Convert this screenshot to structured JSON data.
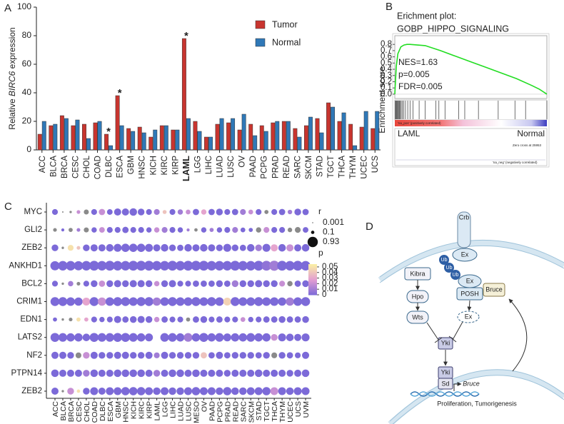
{
  "panel_labels": [
    "A",
    "B",
    "C",
    "D"
  ],
  "chart_data": [
    {
      "type": "bar",
      "categories": [
        "ACC",
        "BLCA",
        "BRCA",
        "CESC",
        "CHOL",
        "COAD",
        "DLBC",
        "ESCA",
        "GBM",
        "HNSC",
        "KICH",
        "KIRC",
        "KIRP",
        "LAML",
        "LGG",
        "LIHC",
        "LUAD",
        "LUSC",
        "OV",
        "PAAD",
        "PCPG",
        "PRAD",
        "READ",
        "SARC",
        "SKCM",
        "STAD",
        "TGCT",
        "THCA",
        "THYM",
        "UCEC",
        "UCS"
      ],
      "series": [
        {
          "name": "Tumor",
          "color": "#c8352f",
          "values": [
            11,
            17,
            24,
            17,
            18,
            19,
            11,
            38,
            15,
            16,
            9,
            17,
            14,
            78,
            20,
            9,
            18,
            19,
            14,
            18,
            17,
            19,
            20,
            15,
            17,
            22,
            33,
            20,
            18,
            16,
            15
          ]
        },
        {
          "name": "Normal",
          "color": "#2f78b7",
          "values": [
            20,
            18,
            22,
            21,
            8,
            20,
            3,
            17,
            13,
            12,
            14,
            17,
            14,
            22,
            13,
            9,
            22,
            22,
            25,
            10,
            13,
            20,
            20,
            9,
            23,
            12,
            30,
            26,
            3,
            27,
            27
          ]
        }
      ],
      "ylim": [
        0,
        100
      ],
      "yticks": [
        0,
        20,
        40,
        60,
        80,
        100
      ],
      "ylabel": [
        "Relative ",
        "BIRC6",
        " expression"
      ],
      "annotations": [
        {
          "category": "DLBC",
          "text": "*"
        },
        {
          "category": "ESCA",
          "text": "*"
        },
        {
          "category": "LAML",
          "text": "*"
        }
      ],
      "highlight": {
        "category": "LAML",
        "color": "#e3141b"
      }
    },
    {
      "type": "gsea",
      "title": [
        "Erichment plot:",
        "GOBP_HIPPO_SIGNALING"
      ],
      "ylabel": "Enrichment score",
      "x": [
        0,
        0.01,
        0.02,
        0.04,
        0.06,
        0.08,
        0.1,
        0.15,
        0.2,
        0.3,
        0.4,
        0.5,
        0.6,
        0.7,
        0.8,
        0.9,
        0.95,
        1.0
      ],
      "values": [
        0,
        0.45,
        0.65,
        0.76,
        0.79,
        0.8,
        0.8,
        0.79,
        0.78,
        0.7,
        0.61,
        0.52,
        0.43,
        0.34,
        0.25,
        0.14,
        0.08,
        0.0
      ],
      "color": "#22dd22",
      "xlim": [
        0,
        1
      ],
      "ylim": [
        -0.07,
        0.94
      ],
      "yticks": [
        {
          "value": 0,
          "label": "0.0"
        },
        0.1,
        0.2,
        0.3,
        0.4,
        0.5,
        0.6,
        0.7,
        0.8
      ],
      "hits": [
        0.004,
        0.008,
        0.012,
        0.016,
        0.02,
        0.025,
        0.03,
        0.035,
        0.042,
        0.05,
        0.058,
        0.07,
        0.085,
        0.1,
        0.12,
        0.16,
        0.2,
        0.27,
        0.29,
        0.33,
        0.42,
        0.46,
        0.55,
        0.68,
        0.79,
        0.86,
        1.0
      ],
      "stats": [
        "NES=1.63",
        "p=0.005",
        "FDR=0.005"
      ],
      "group_labels": [
        "LAML",
        "Normal"
      ],
      "zero_cross": "Zero cross at 25953",
      "pos_label": "'na_pos' (positively correlated)",
      "neg_label": "'na_neg' (negatively correlated)"
    },
    {
      "type": "dot",
      "rows": [
        "MYC",
        "GLI2",
        "ZEB2",
        "ANKHD1",
        "BCL2",
        "CRIM1",
        "EDN1",
        "LATS2",
        "NF2",
        "PTPN14",
        "ZEB2"
      ],
      "columns": [
        "ACC",
        "BLCA",
        "BRCA",
        "CESC",
        "CHOL",
        "COAD",
        "DLBC",
        "ESCA",
        "GBM",
        "HNSC",
        "KICH",
        "KIRC",
        "KIRP",
        "LAML",
        "LGG",
        "LIHC",
        "LUAD",
        "LUSC",
        "MESO",
        "OV",
        "PAAD",
        "PCPG",
        "PRAD",
        "READ",
        "SARC",
        "SKCM",
        "STAD",
        "TGCT",
        "THCA",
        "THYM",
        "UCEC",
        "UCS",
        "UVM"
      ],
      "r": [
        [
          0.3,
          0.02,
          0.05,
          0.12,
          0.22,
          0.3,
          0.35,
          0.28,
          0.45,
          0.45,
          0.5,
          0.4,
          0.3,
          0.3,
          0.14,
          0.3,
          0.25,
          0.2,
          0.35,
          0.25,
          0.35,
          0.4,
          0.3,
          0.35,
          0.3,
          0.2,
          0.3,
          0.15,
          0.3,
          0.35,
          0.18,
          0.4,
          0.35
        ],
        [
          0.12,
          0.08,
          0.15,
          0.12,
          0.22,
          0.25,
          0.28,
          0.3,
          0.3,
          0.35,
          0.3,
          0.3,
          0.25,
          0.25,
          0.3,
          0.3,
          0.25,
          0.08,
          0.1,
          0.25,
          0.15,
          0.25,
          0.3,
          0.3,
          0.2,
          0.15,
          0.25,
          0.3,
          0.3,
          0.3,
          0.18,
          0.3,
          0.28
        ],
        [
          0.4,
          0.05,
          0.3,
          0.12,
          0.4,
          0.45,
          0.45,
          0.5,
          0.55,
          0.6,
          0.6,
          0.6,
          0.55,
          0.45,
          0.5,
          0.4,
          0.35,
          0.5,
          0.45,
          0.5,
          0.45,
          0.4,
          0.55,
          0.4,
          0.35,
          0.5,
          0.4,
          0.55,
          0.45,
          0.5,
          0.45,
          0.45,
          0.5
        ],
        [
          0.75,
          0.8,
          0.8,
          0.75,
          0.8,
          0.85,
          0.8,
          0.85,
          0.8,
          0.8,
          0.85,
          0.85,
          0.85,
          0.8,
          0.8,
          0.85,
          0.8,
          0.85,
          0.85,
          0.85,
          0.8,
          0.8,
          0.8,
          0.85,
          0.8,
          0.8,
          0.85,
          0.85,
          0.9,
          0.85,
          0.8,
          0.85,
          0.8
        ],
        [
          0.3,
          0.05,
          0.25,
          0.12,
          0.3,
          0.4,
          0.35,
          0.4,
          0.45,
          0.4,
          0.45,
          0.45,
          0.4,
          0.25,
          0.4,
          0.45,
          0.3,
          0.3,
          0.35,
          0.35,
          0.35,
          0.4,
          0.35,
          0.4,
          0.4,
          0.4,
          0.45,
          0.4,
          0.4,
          0.3,
          0.25,
          0.35,
          0.4
        ],
        [
          0.7,
          0.7,
          0.65,
          0.6,
          0.55,
          0.7,
          0.6,
          0.65,
          0.7,
          0.7,
          0.65,
          0.7,
          0.7,
          0.6,
          0.65,
          0.7,
          0.65,
          0.65,
          0.7,
          0.65,
          0.7,
          0.65,
          0.55,
          0.7,
          0.65,
          0.65,
          0.7,
          0.65,
          0.65,
          0.6,
          0.6,
          0.65,
          0.7
        ],
        [
          0.15,
          0.05,
          0.12,
          0.15,
          0.15,
          0.3,
          0.25,
          0.3,
          0.45,
          0.35,
          0.4,
          0.45,
          0.4,
          0.25,
          0.35,
          0.3,
          0.3,
          0.15,
          0.35,
          0.4,
          0.3,
          0.35,
          0.3,
          0.3,
          0.2,
          0.25,
          0.3,
          0.35,
          0.35,
          0.4,
          0.35,
          0.35,
          0.4
        ],
        [
          0.7,
          0.65,
          0.6,
          0.6,
          0.5,
          0.7,
          0.65,
          0.65,
          0.7,
          0.7,
          0.65,
          0.6,
          0.55,
          null,
          0.65,
          0.65,
          0.6,
          0.65,
          0.6,
          0.7,
          0.6,
          0.65,
          0.55,
          0.6,
          0.6,
          0.65,
          0.6,
          0.6,
          0.4,
          0.55,
          0.5,
          0.45,
          0.55
        ],
        [
          0.45,
          0.45,
          0.4,
          0.3,
          0.4,
          0.45,
          0.4,
          0.4,
          0.45,
          0.45,
          0.4,
          0.4,
          0.45,
          0.3,
          0.45,
          0.4,
          0.4,
          0.4,
          0.4,
          0.35,
          0.35,
          0.45,
          0.35,
          0.4,
          0.4,
          0.4,
          0.35,
          0.4,
          0.3,
          0.4,
          0.35,
          0.3,
          0.45
        ],
        [
          0.5,
          0.45,
          0.45,
          0.45,
          0.4,
          0.5,
          0.45,
          0.45,
          0.5,
          0.5,
          0.5,
          0.5,
          0.45,
          0.4,
          0.45,
          0.5,
          0.5,
          0.45,
          0.5,
          0.45,
          0.45,
          0.45,
          0.4,
          0.45,
          0.45,
          0.45,
          0.5,
          0.45,
          0.45,
          0.45,
          0.4,
          0.45,
          0.5
        ],
        [
          0.45,
          0.05,
          0.4,
          0.1,
          0.4,
          0.55,
          0.45,
          0.55,
          0.55,
          0.6,
          0.6,
          0.6,
          0.55,
          0.5,
          0.55,
          0.5,
          0.5,
          0.55,
          0.6,
          0.55,
          0.55,
          0.5,
          0.6,
          0.5,
          0.5,
          0.55,
          0.55,
          0.6,
          0.55,
          0.55,
          0.5,
          0.55,
          0.55
        ]
      ],
      "p": [
        [
          0,
          null,
          null,
          0.02,
          null,
          0,
          0.02,
          0,
          0,
          0,
          0,
          0,
          0,
          0.01,
          0.04,
          0,
          0.01,
          0.02,
          0,
          0.03,
          0,
          0,
          0,
          0,
          0.01,
          0.02,
          0,
          null,
          0,
          0,
          0.01,
          0,
          0
        ],
        [
          null,
          0,
          null,
          0.01,
          null,
          0,
          0.02,
          0,
          0,
          0,
          0,
          0,
          0,
          0.02,
          0.01,
          0,
          0,
          0.01,
          null,
          0,
          0.01,
          0,
          0,
          0.01,
          0,
          0,
          null,
          0.02,
          0,
          0,
          null,
          null,
          0
        ],
        [
          0,
          null,
          0.05,
          0.04,
          0,
          0,
          0,
          0,
          0,
          0,
          0,
          0,
          0,
          0,
          0,
          0,
          0,
          0,
          0,
          0,
          0,
          0,
          0,
          0,
          0,
          0,
          0.01,
          0,
          0.03,
          0,
          0.02,
          0,
          0
        ],
        [
          0,
          0,
          0,
          0,
          0,
          0,
          0,
          0,
          0,
          0,
          0,
          0,
          0,
          0,
          0,
          0,
          0,
          0,
          0,
          0,
          0,
          0,
          0,
          0,
          0,
          0,
          0,
          0.005,
          0.01,
          0,
          0,
          0,
          0
        ],
        [
          0,
          null,
          0.01,
          null,
          0,
          0,
          0.02,
          0,
          0,
          0,
          0,
          0,
          0,
          0.02,
          0,
          0,
          0,
          0,
          0,
          0,
          0,
          0,
          0,
          0.01,
          0,
          0,
          0,
          0,
          0,
          0.02,
          null,
          0,
          0
        ],
        [
          0,
          0,
          0,
          0,
          0.03,
          0,
          0.02,
          0,
          0,
          0,
          0,
          0,
          0,
          0.01,
          0,
          0,
          0,
          0,
          0,
          0,
          0,
          0,
          0.045,
          0,
          0,
          0,
          0,
          0,
          0,
          0,
          0.01,
          0,
          0
        ],
        [
          0,
          null,
          null,
          0.05,
          0.03,
          0,
          0,
          0,
          0,
          0,
          0,
          0,
          0,
          0.02,
          0,
          0,
          0,
          null,
          0,
          0,
          0,
          0,
          0,
          0,
          0.02,
          0,
          0,
          0,
          0,
          0,
          0,
          0,
          0
        ],
        [
          0,
          0,
          0,
          0,
          0,
          0,
          0,
          0,
          0,
          0,
          0,
          0,
          0,
          null,
          0,
          0,
          0,
          0.01,
          0,
          0,
          0,
          0,
          0,
          0,
          0,
          0,
          0,
          0,
          0.02,
          0,
          0,
          0,
          0
        ],
        [
          0,
          0,
          0,
          null,
          0.02,
          0,
          0,
          0,
          0,
          0,
          0,
          0,
          0,
          0.01,
          0,
          0,
          0,
          0,
          0,
          0.04,
          0,
          0,
          0,
          0,
          0,
          0,
          0,
          0,
          null,
          0,
          0,
          0,
          0
        ],
        [
          0,
          0,
          0,
          0,
          0.01,
          0,
          0,
          0,
          0,
          0,
          0,
          0,
          0,
          0.01,
          0,
          0,
          0,
          0,
          0,
          0,
          0,
          0,
          0,
          0,
          0,
          0,
          0,
          0,
          0,
          0,
          0,
          0,
          0
        ],
        [
          0,
          null,
          0.02,
          0.05,
          0,
          0,
          0,
          0,
          0,
          0,
          0,
          0,
          0,
          0,
          0,
          0,
          0,
          0,
          0,
          0,
          0,
          0,
          0,
          0,
          0,
          0,
          0,
          0,
          0.02,
          0,
          0,
          0,
          0
        ]
      ],
      "size_legend": {
        "title": "r",
        "values": [
          0.001,
          0.1,
          0.93
        ]
      },
      "color_legend": {
        "title": "p",
        "ticks": [
          0.05,
          0.04,
          0.03,
          0.02,
          0.01,
          0
        ],
        "clim": [
          0,
          0.055
        ],
        "colors": [
          "#7c6ad8",
          "#e39ed2",
          "#faf0a4"
        ]
      },
      "na_color": "#8a8a8a"
    }
  ],
  "diagram": {
    "labels": [
      "Crb",
      "Ex",
      "Ub",
      "Ub",
      "Ub",
      "Ex",
      "POSH",
      "Bruce",
      "Kibra",
      "Hpo",
      "Wts",
      "Ex",
      "Yki",
      "Yki",
      "Sd",
      "Bruce",
      "Proliferation, Tumorigenesis"
    ]
  }
}
